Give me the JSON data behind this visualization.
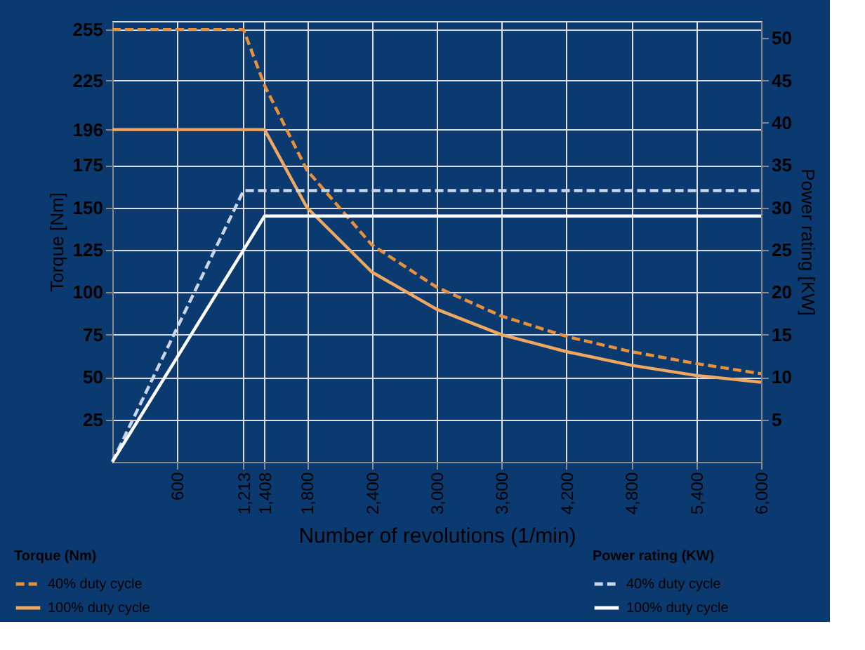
{
  "chart_data": {
    "type": "line",
    "xlabel": "Number of revolutions (1/min)",
    "ylabel": "Torque [Nm]",
    "y2label": "Power rating [KW]",
    "legend_title": "Torque (Nm)",
    "annotations": [
      "Power rating (KW)"
    ],
    "xlim": [
      0,
      6000
    ],
    "ylim": [
      0,
      260
    ],
    "y2lim": [
      0,
      52
    ],
    "xticks": [
      600,
      {
        "value": 1213,
        "label": "1,213"
      },
      {
        "value": 1408,
        "label": "1,408"
      },
      {
        "value": 1800,
        "label": "1,800"
      },
      {
        "value": 2400,
        "label": "2,400"
      },
      {
        "value": 3000,
        "label": "3,000"
      },
      {
        "value": 3600,
        "label": "3,600"
      },
      {
        "value": 4200,
        "label": "4,200"
      },
      {
        "value": 4800,
        "label": "4,800"
      },
      {
        "value": 5400,
        "label": "5,400"
      },
      {
        "value": 6000,
        "label": "6,000"
      }
    ],
    "yticks": [
      25,
      50,
      75,
      100,
      125,
      150,
      175,
      196,
      225,
      255
    ],
    "y2ticks": [
      5,
      10,
      15,
      20,
      25,
      30,
      35,
      40,
      45,
      50
    ],
    "grid": true,
    "legend": "bottom",
    "series": [
      {
        "name": "40% duty cycle",
        "color": "#e8913a",
        "line_style": "dashed",
        "x": [
          0,
          1213,
          1408,
          1800,
          2400,
          3000,
          3600,
          4200,
          4800,
          5400,
          6000
        ],
        "values": [
          255,
          255,
          222,
          172,
          128,
          103,
          86,
          74,
          65,
          58,
          52
        ]
      },
      {
        "name": "100% duty cycle",
        "color": "#f0a860",
        "line_style": "solid",
        "x": [
          0,
          1408,
          1800,
          2400,
          3000,
          3600,
          4200,
          4800,
          5400,
          6000
        ],
        "values": [
          196,
          196,
          150,
          112,
          90,
          75,
          65,
          57,
          51,
          47
        ]
      },
      {
        "name": "40% duty cycle",
        "color": "#c9d6ea",
        "line_style": "dashed",
        "axis": "y2",
        "x": [
          0,
          1213,
          6000
        ],
        "values": [
          0,
          32,
          32
        ]
      },
      {
        "name": "100% duty cycle",
        "color": "#ffffff",
        "line_style": "solid",
        "axis": "y2",
        "x": [
          0,
          1408,
          6000
        ],
        "values": [
          0,
          29,
          29
        ]
      }
    ]
  }
}
